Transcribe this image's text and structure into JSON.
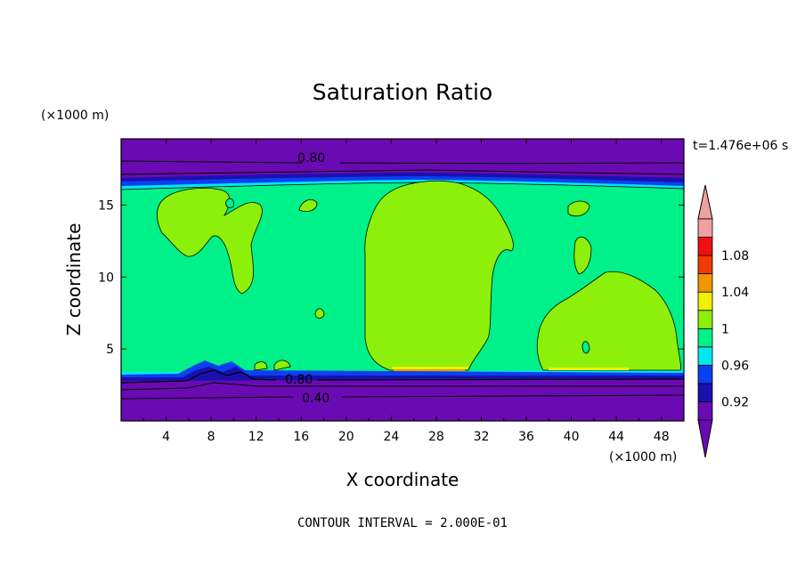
{
  "chart_data": {
    "type": "heatmap",
    "title": "Saturation Ratio",
    "xlabel": "X coordinate",
    "ylabel": "Z coordinate",
    "x_unit": "(×1000 m)",
    "y_unit": "(×1000 m)",
    "time_label": "t=1.476e+06 s",
    "footer": "CONTOUR INTERVAL = 2.000E-01",
    "xlim": [
      0,
      50
    ],
    "ylim": [
      0,
      19.6
    ],
    "x_ticks": [
      4,
      8,
      12,
      16,
      20,
      24,
      28,
      32,
      36,
      40,
      44,
      48
    ],
    "y_ticks": [
      5,
      10,
      15
    ],
    "colorbar": {
      "levels": [
        0.92,
        0.96,
        1,
        1.04,
        1.08
      ],
      "level_labels": [
        "0.92",
        "0.96",
        "1",
        "1.04",
        "1.08"
      ],
      "bands": [
        {
          "max": 0.92,
          "color": "#6a0ab2"
        },
        {
          "max": 0.94,
          "color": "#1a10b0"
        },
        {
          "max": 0.96,
          "color": "#0a40f0"
        },
        {
          "max": 0.98,
          "color": "#00e8f0"
        },
        {
          "max": 1.0,
          "color": "#00f08a"
        },
        {
          "max": 1.02,
          "color": "#8cf00a"
        },
        {
          "max": 1.04,
          "color": "#f0f000"
        },
        {
          "max": 1.06,
          "color": "#f09800"
        },
        {
          "max": 1.08,
          "color": "#f03a00"
        },
        {
          "max": 1.1,
          "color": "#f01010"
        },
        {
          "max": 1.12,
          "color": "#f0a0a0"
        }
      ],
      "under_color": "#6a0ab2",
      "over_color": "#f0a0a0"
    },
    "contour_labels": [
      {
        "text": "0.80",
        "x": 16.9,
        "y": 18.3
      },
      {
        "text": "0.80",
        "x": 15.8,
        "y": 2.9
      },
      {
        "text": "0.40",
        "x": 17.3,
        "y": 1.6
      }
    ],
    "regions": {
      "upper_dry_top": 19.6,
      "upper_dry_bottom": 17.2,
      "moist_layer_top": 17.1,
      "moist_layer_bottom": 3.4,
      "lower_dry_top": 3.3
    }
  }
}
